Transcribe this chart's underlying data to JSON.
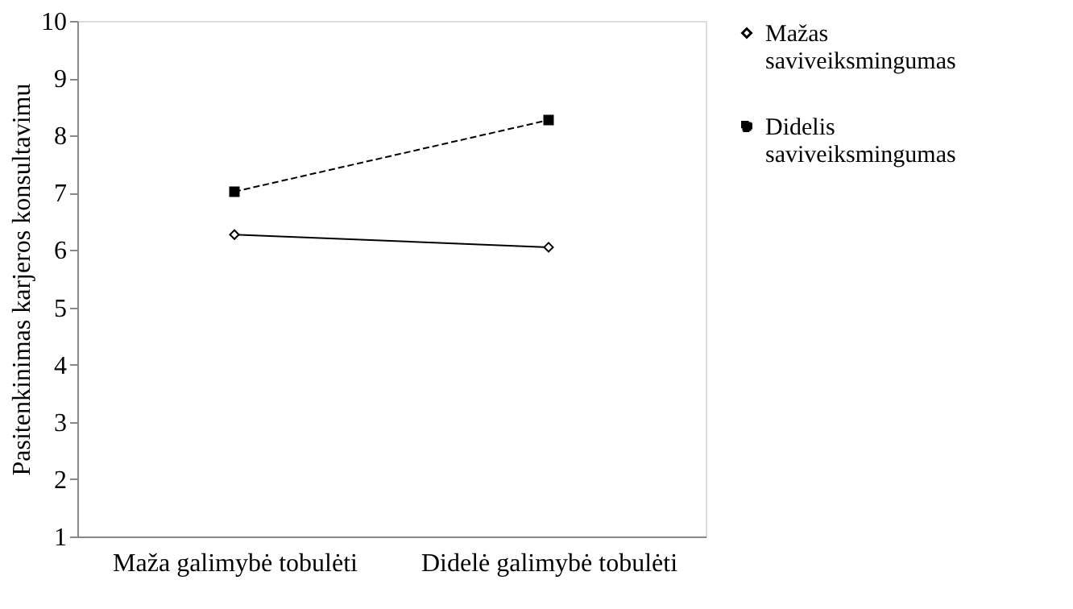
{
  "chart_data": {
    "type": "line",
    "ylabel": "Pasitenkinimas karjeros konsultavimu",
    "categories": [
      "Maža galimybė tobulėti",
      "Didelė galimybė tobulėti"
    ],
    "series": [
      {
        "name": "Mažas saviveiksmingumas",
        "color": "#000000",
        "values": [
          6.27,
          6.05
        ],
        "marker": "diamond",
        "line_style": "solid"
      },
      {
        "name": "Didelis saviveiksmingumas",
        "color": "#000000",
        "values": [
          7.02,
          8.27
        ],
        "marker": "square",
        "line_style": "dashed"
      }
    ],
    "ylim": [
      1,
      10
    ],
    "yticks": [
      1,
      2,
      3,
      4,
      5,
      6,
      7,
      8,
      9,
      10
    ],
    "grid": false,
    "legend": "right"
  }
}
